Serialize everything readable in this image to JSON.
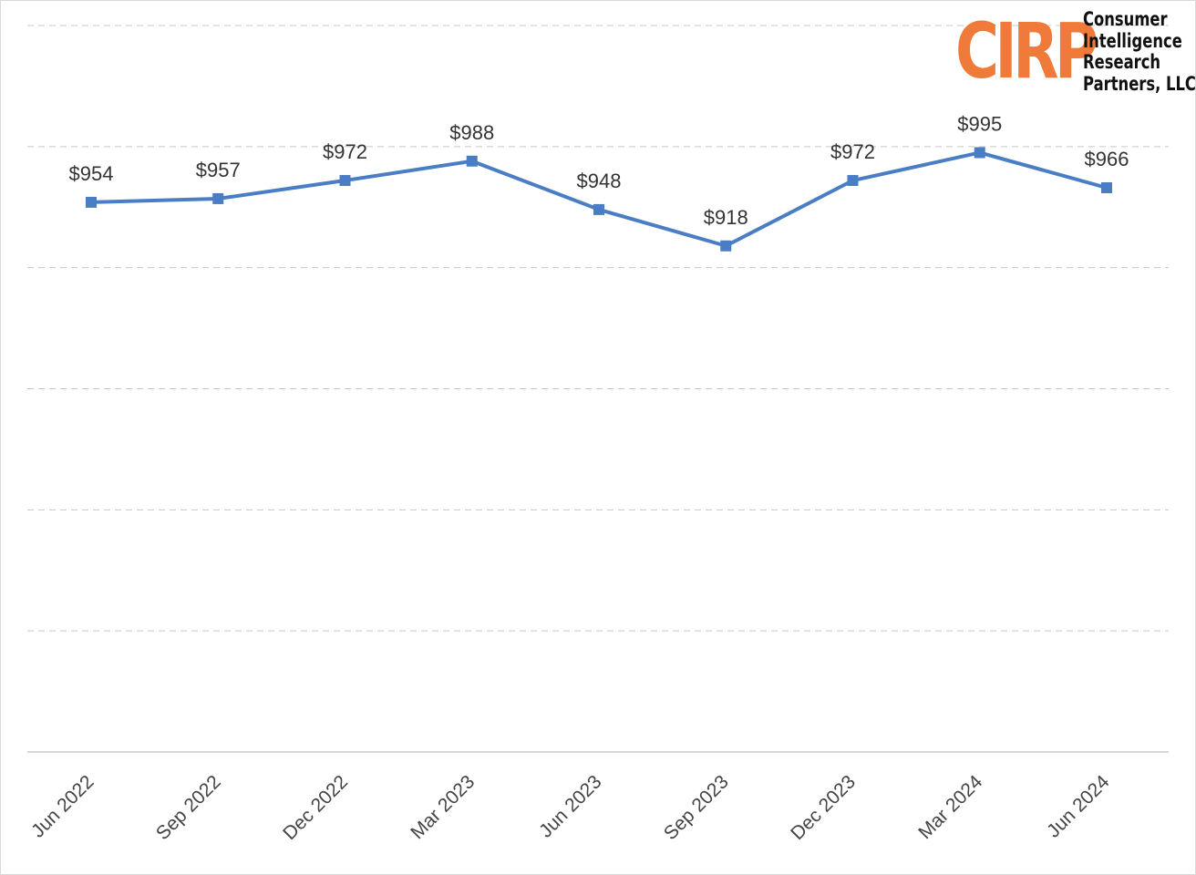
{
  "logo": {
    "mark": "CIRP",
    "lines": [
      "Consumer",
      "Intelligence",
      "Research",
      "Partners, LLC"
    ],
    "mark_color": "#f07a3a"
  },
  "chart_data": {
    "type": "line",
    "title": "",
    "xlabel": "",
    "ylabel": "",
    "categories": [
      "Jun 2022",
      "Sep 2022",
      "Dec 2022",
      "Mar 2023",
      "Jun 2023",
      "Sep 2023",
      "Dec 2023",
      "Mar 2024",
      "Jun 2024"
    ],
    "series": [
      {
        "values": [
          954,
          957,
          972,
          988,
          948,
          918,
          972,
          995,
          966
        ],
        "labels": [
          "$954",
          "$957",
          "$972",
          "$988",
          "$948",
          "$918",
          "$972",
          "$995",
          "$966"
        ],
        "color": "#4a7ec4",
        "marker": "square"
      }
    ],
    "ylim": [
      500,
      1100
    ],
    "y_gridline_step": 100,
    "grid": "horizontal-dashed",
    "legend": "none",
    "x_tick_rotation": "-45deg"
  }
}
